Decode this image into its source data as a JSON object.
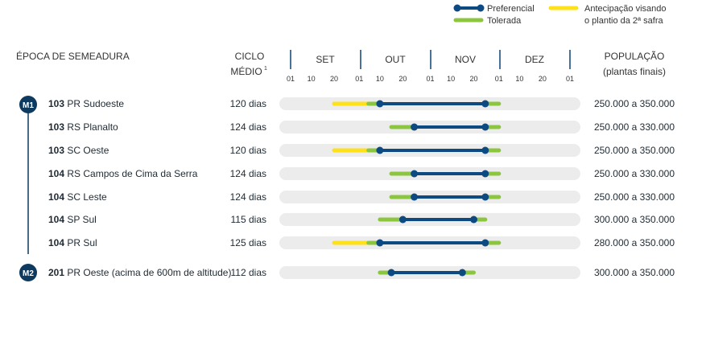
{
  "legend": {
    "preferencial": "Preferencial",
    "tolerada": "Tolerada",
    "antecipacao_line1": "Antecipação visando",
    "antecipacao_line2": "o plantio da 2ª safra"
  },
  "headers": {
    "epoca": "ÉPOCA DE SEMEADURA",
    "ciclo_line1": "CICLO",
    "ciclo_line2": "MÉDIO",
    "ciclo_superscript": "1",
    "populacao_line1": "POPULAÇÃO",
    "populacao_line2": "(plantas finais)"
  },
  "months": [
    "SET",
    "OUT",
    "NOV",
    "DEZ"
  ],
  "day_ticks": [
    "01",
    "10",
    "20",
    "01",
    "10",
    "20",
    "01",
    "10",
    "20",
    "01",
    "10",
    "20",
    "01"
  ],
  "colors": {
    "preferencial": "#0e4a82",
    "tolerada": "#8cc63f",
    "antecipacao": "#ffe11a",
    "track": "#ececec",
    "dark": "#0e3a5f",
    "grid": "#1a4f82"
  },
  "groups": [
    {
      "label": "M1",
      "rows": [
        0,
        6
      ]
    },
    {
      "label": "M2",
      "rows": [
        7,
        7
      ]
    }
  ],
  "chart_data": {
    "type": "range-bar",
    "x_unit": "date of sowing (month/day)",
    "x_ticks": [
      "01/09",
      "10/09",
      "20/09",
      "01/10",
      "10/10",
      "20/10",
      "01/11",
      "10/11",
      "20/11",
      "01/12",
      "10/12",
      "20/12",
      "01/01"
    ],
    "rows": [
      {
        "bold": "103",
        "name": "PR Sudoeste",
        "ciclo": "120 dias",
        "populacao": "250.000 a 350.000",
        "antecipacao": [
          "20/09",
          "05/10"
        ],
        "tolerada": [
          "05/10",
          "10/10"
        ],
        "preferencial": [
          "10/10",
          "25/11"
        ],
        "tolerada_end": [
          "25/11",
          "01/12"
        ]
      },
      {
        "bold": "103",
        "name": "RS Planalto",
        "ciclo": "124 dias",
        "populacao": "250.000 a 330.000",
        "antecipacao": null,
        "tolerada": [
          "15/10",
          "25/10"
        ],
        "preferencial": [
          "25/10",
          "25/11"
        ],
        "tolerada_end": [
          "25/11",
          "01/12"
        ]
      },
      {
        "bold": "103",
        "name": "SC Oeste",
        "ciclo": "120 dias",
        "populacao": "250.000 a 350.000",
        "antecipacao": [
          "20/09",
          "05/10"
        ],
        "tolerada": [
          "05/10",
          "10/10"
        ],
        "preferencial": [
          "10/10",
          "25/11"
        ],
        "tolerada_end": [
          "25/11",
          "01/12"
        ]
      },
      {
        "bold": "104",
        "name": "RS Campos de Cima da Serra",
        "ciclo": "124 dias",
        "populacao": "250.000 a 330.000",
        "antecipacao": null,
        "tolerada": [
          "15/10",
          "25/10"
        ],
        "preferencial": [
          "25/10",
          "25/11"
        ],
        "tolerada_end": [
          "25/11",
          "01/12"
        ]
      },
      {
        "bold": "104",
        "name": "SC Leste",
        "ciclo": "124 dias",
        "populacao": "250.000 a 330.000",
        "antecipacao": null,
        "tolerada": [
          "15/10",
          "25/10"
        ],
        "preferencial": [
          "25/10",
          "25/11"
        ],
        "tolerada_end": [
          "25/11",
          "01/12"
        ]
      },
      {
        "bold": "104",
        "name": "SP Sul",
        "ciclo": "115 dias",
        "populacao": "300.000 a 350.000",
        "antecipacao": null,
        "tolerada": [
          "10/10",
          "20/10"
        ],
        "preferencial": [
          "20/10",
          "20/11"
        ],
        "tolerada_end": [
          "20/11",
          "25/11"
        ]
      },
      {
        "bold": "104",
        "name": "PR Sul",
        "ciclo": "125 dias",
        "populacao": "280.000 a 350.000",
        "antecipacao": [
          "20/09",
          "05/10"
        ],
        "tolerada": [
          "05/10",
          "10/10"
        ],
        "preferencial": [
          "10/10",
          "25/11"
        ],
        "tolerada_end": [
          "25/11",
          "01/12"
        ]
      },
      {
        "bold": "201",
        "name": "PR Oeste (acima de 600m de altitude)",
        "ciclo": "112 dias",
        "populacao": "300.000 a 350.000",
        "antecipacao": null,
        "tolerada": [
          "10/10",
          "15/10"
        ],
        "preferencial": [
          "15/10",
          "15/11"
        ],
        "tolerada_end": [
          "15/11",
          "20/11"
        ]
      }
    ]
  }
}
